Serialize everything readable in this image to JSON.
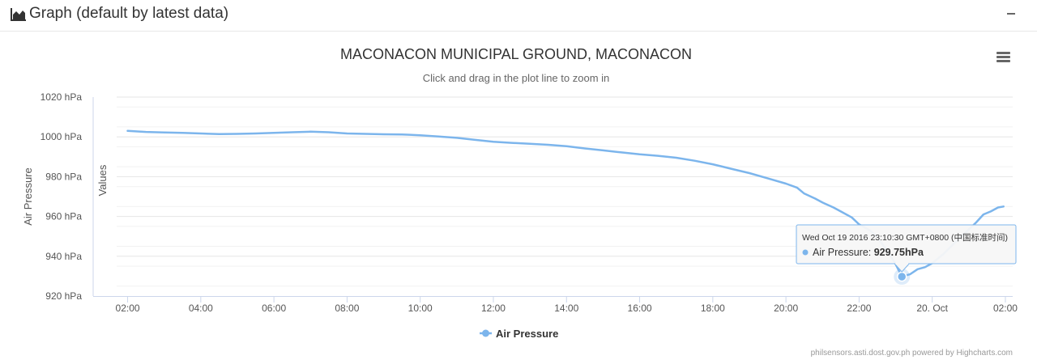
{
  "panel": {
    "title": "Graph (default by latest data)",
    "header_icon": "area-chart-icon",
    "collapse_icon": "minus-icon"
  },
  "chart_data": {
    "type": "line",
    "title": "MACONACON MUNICIPAL GROUND, MACONACON",
    "subtitle": "Click and drag in the plot line to zoom in",
    "ylabel": "Air Pressure",
    "ylabel_secondary": "Values",
    "y_unit": "hPa",
    "ylim": [
      920,
      1020
    ],
    "y_ticks": [
      920,
      940,
      960,
      980,
      1000,
      1020
    ],
    "y_tick_labels": [
      "920 hPa",
      "940 hPa",
      "960 hPa",
      "980 hPa",
      "1000 hPa",
      "1020 hPa"
    ],
    "x_ticks": [
      "02:00",
      "04:00",
      "06:00",
      "08:00",
      "10:00",
      "12:00",
      "14:00",
      "16:00",
      "18:00",
      "20:00",
      "22:00",
      "20. Oct",
      "02:00"
    ],
    "x_tick_hours": [
      2,
      4,
      6,
      8,
      10,
      12,
      14,
      16,
      18,
      20,
      22,
      24,
      26
    ],
    "x_range_hours": [
      1.7,
      26.2
    ],
    "grid": true,
    "legend_position": "bottom-center",
    "series": [
      {
        "name": "Air Pressure",
        "color": "#7cb5ec",
        "x_hours": [
          2.0,
          2.5,
          3.0,
          3.5,
          4.0,
          4.5,
          5.0,
          5.5,
          6.0,
          6.5,
          7.0,
          7.5,
          8.0,
          8.5,
          9.0,
          9.5,
          10.0,
          10.5,
          11.0,
          11.5,
          12.0,
          12.5,
          13.0,
          13.5,
          14.0,
          14.5,
          15.0,
          15.5,
          16.0,
          16.5,
          17.0,
          17.5,
          18.0,
          18.5,
          19.0,
          19.5,
          20.0,
          20.3,
          20.5,
          20.8,
          21.0,
          21.3,
          21.5,
          21.8,
          22.0,
          22.3,
          22.5,
          22.8,
          23.0,
          23.17,
          23.4,
          23.6,
          23.8,
          24.0,
          24.3,
          24.6,
          24.8,
          25.0,
          25.2,
          25.4,
          25.6,
          25.8,
          25.95
        ],
        "values": [
          1003.0,
          1002.5,
          1002.2,
          1002.0,
          1001.7,
          1001.4,
          1001.5,
          1001.7,
          1002.0,
          1002.3,
          1002.6,
          1002.3,
          1001.7,
          1001.5,
          1001.3,
          1001.2,
          1000.8,
          1000.2,
          999.5,
          998.5,
          997.5,
          997.0,
          996.5,
          996.0,
          995.3,
          994.2,
          993.2,
          992.2,
          991.2,
          990.5,
          989.5,
          988.0,
          986.2,
          984.0,
          981.8,
          979.2,
          976.5,
          974.5,
          971.5,
          969.0,
          967.0,
          964.5,
          962.5,
          959.5,
          956.0,
          953.0,
          949.5,
          942.0,
          936.0,
          929.75,
          931.0,
          933.5,
          934.5,
          936.5,
          941.0,
          946.5,
          950.0,
          953.5,
          957.0,
          961.0,
          962.5,
          964.5,
          965.0
        ]
      }
    ],
    "tooltip": {
      "header": "Wed Oct 19 2016 23:10:30 GMT+0800 (中国标准时间)",
      "series_name": "Air Pressure",
      "value": "929.75hPa",
      "x_hour": 23.17,
      "y_value": 929.75
    },
    "credits": "philsensors.asti.dost.gov.ph powered by Highcharts.com"
  },
  "menu_icon": "hamburger-menu-icon"
}
